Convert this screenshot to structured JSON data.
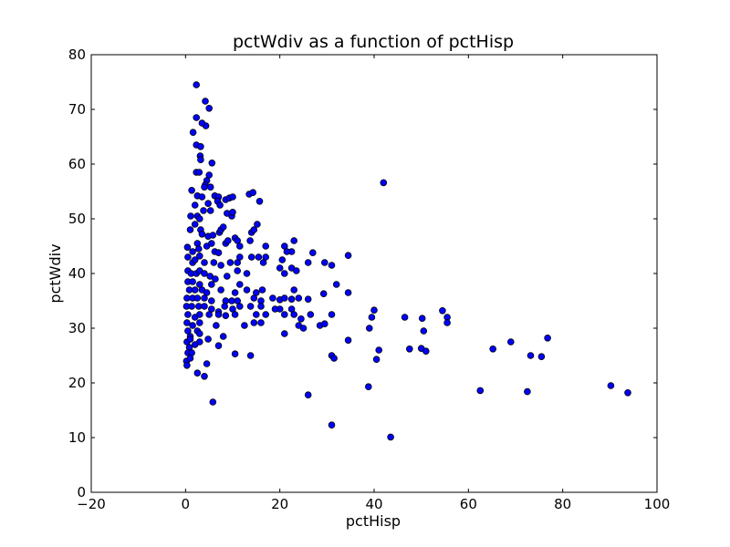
{
  "chart_data": {
    "type": "scatter",
    "title": "pctWdiv as a function of pctHisp",
    "xlabel": "pctHisp",
    "ylabel": "pctWdiv",
    "xlim": [
      -20,
      100
    ],
    "ylim": [
      0,
      80
    ],
    "xticks": [
      -20,
      0,
      20,
      40,
      60,
      80,
      100
    ],
    "yticks": [
      0,
      10,
      20,
      30,
      40,
      50,
      60,
      70,
      80
    ],
    "xtick_labels": [
      "−20",
      "0",
      "20",
      "40",
      "60",
      "80",
      "100"
    ],
    "ytick_labels": [
      "0",
      "10",
      "20",
      "30",
      "40",
      "50",
      "60",
      "70",
      "80"
    ],
    "grid": false,
    "marker_color": "#0000ff",
    "marker_edge_color": "#000000",
    "points": [
      [
        2.3,
        74.5
      ],
      [
        4.2,
        71.5
      ],
      [
        5.0,
        70.2
      ],
      [
        2.3,
        68.5
      ],
      [
        4.3,
        67.0
      ],
      [
        3.5,
        67.5
      ],
      [
        1.6,
        65.8
      ],
      [
        2.3,
        63.5
      ],
      [
        3.2,
        63.2
      ],
      [
        3.1,
        61.5
      ],
      [
        3.2,
        60.8
      ],
      [
        5.6,
        60.2
      ],
      [
        2.3,
        58.5
      ],
      [
        2.9,
        58.5
      ],
      [
        5.0,
        58.0
      ],
      [
        4.5,
        57.0
      ],
      [
        4.2,
        56.2
      ],
      [
        42.0,
        56.6
      ],
      [
        4.0,
        55.8
      ],
      [
        5.3,
        55.8
      ],
      [
        1.3,
        55.2
      ],
      [
        2.5,
        54.2
      ],
      [
        3.5,
        54.0
      ],
      [
        6.2,
        54.2
      ],
      [
        7.0,
        54.0
      ],
      [
        8.5,
        53.5
      ],
      [
        9.3,
        53.8
      ],
      [
        10.0,
        54.0
      ],
      [
        13.5,
        54.5
      ],
      [
        14.3,
        54.8
      ],
      [
        15.7,
        53.2
      ],
      [
        6.8,
        53.2
      ],
      [
        7.3,
        52.5
      ],
      [
        4.8,
        52.8
      ],
      [
        2.0,
        52.5
      ],
      [
        1.1,
        50.5
      ],
      [
        2.5,
        50.5
      ],
      [
        3.0,
        50.0
      ],
      [
        3.8,
        51.5
      ],
      [
        5.3,
        51.5
      ],
      [
        8.8,
        51.0
      ],
      [
        9.8,
        50.5
      ],
      [
        10.0,
        51.2
      ],
      [
        2.0,
        49.0
      ],
      [
        1.0,
        48.0
      ],
      [
        3.2,
        48.0
      ],
      [
        3.5,
        47.2
      ],
      [
        4.8,
        46.8
      ],
      [
        5.8,
        47.0
      ],
      [
        7.2,
        47.5
      ],
      [
        7.5,
        48.0
      ],
      [
        8.0,
        48.5
      ],
      [
        10.5,
        46.5
      ],
      [
        11.0,
        46.0
      ],
      [
        14.0,
        47.5
      ],
      [
        14.5,
        48.0
      ],
      [
        15.2,
        49.0
      ],
      [
        13.7,
        46.0
      ],
      [
        2.5,
        45.5
      ],
      [
        0.4,
        44.8
      ],
      [
        1.5,
        44.0
      ],
      [
        2.8,
        44.5
      ],
      [
        3.0,
        43.2
      ],
      [
        4.5,
        45.0
      ],
      [
        5.5,
        45.5
      ],
      [
        6.2,
        44.0
      ],
      [
        7.0,
        43.8
      ],
      [
        8.5,
        45.5
      ],
      [
        9.0,
        46.0
      ],
      [
        11.5,
        45.0
      ],
      [
        17.0,
        45.0
      ],
      [
        21.0,
        45.0
      ],
      [
        22.5,
        44.0
      ],
      [
        23.0,
        46.0
      ],
      [
        21.5,
        44.0
      ],
      [
        27.0,
        43.8
      ],
      [
        34.5,
        43.3
      ],
      [
        0.5,
        43.0
      ],
      [
        1.5,
        42.0
      ],
      [
        2.0,
        42.5
      ],
      [
        4.0,
        42.0
      ],
      [
        6.0,
        42.0
      ],
      [
        7.5,
        41.5
      ],
      [
        9.5,
        42.0
      ],
      [
        11.0,
        42.0
      ],
      [
        11.5,
        43.0
      ],
      [
        14.0,
        43.0
      ],
      [
        15.5,
        43.0
      ],
      [
        17.0,
        43.0
      ],
      [
        20.5,
        42.5
      ],
      [
        26.0,
        42.0
      ],
      [
        29.5,
        42.0
      ],
      [
        31.0,
        41.5
      ],
      [
        0.5,
        40.5
      ],
      [
        1.2,
        40.0
      ],
      [
        2.3,
        40.0
      ],
      [
        3.0,
        40.5
      ],
      [
        4.0,
        40.0
      ],
      [
        5.2,
        39.5
      ],
      [
        8.8,
        39.5
      ],
      [
        11.0,
        40.5
      ],
      [
        13.0,
        40.0
      ],
      [
        16.5,
        42.0
      ],
      [
        20.0,
        41.0
      ],
      [
        21.0,
        40.0
      ],
      [
        22.5,
        41.0
      ],
      [
        23.5,
        40.5
      ],
      [
        0.5,
        38.5
      ],
      [
        1.5,
        38.5
      ],
      [
        3.0,
        38.0
      ],
      [
        5.5,
        38.0
      ],
      [
        6.3,
        39.0
      ],
      [
        11.5,
        38.0
      ],
      [
        32.0,
        38.0
      ],
      [
        0.8,
        37.0
      ],
      [
        2.0,
        37.0
      ],
      [
        3.5,
        37.0
      ],
      [
        4.5,
        36.5
      ],
      [
        7.5,
        37.0
      ],
      [
        10.5,
        36.5
      ],
      [
        13.0,
        37.0
      ],
      [
        15.0,
        36.5
      ],
      [
        16.3,
        37.0
      ],
      [
        23.0,
        37.0
      ],
      [
        29.3,
        36.3
      ],
      [
        34.5,
        36.5
      ],
      [
        0.3,
        35.5
      ],
      [
        1.5,
        35.5
      ],
      [
        2.5,
        35.5
      ],
      [
        4.0,
        35.5
      ],
      [
        5.5,
        35.0
      ],
      [
        8.5,
        35.0
      ],
      [
        9.8,
        35.0
      ],
      [
        11.0,
        35.0
      ],
      [
        14.5,
        35.5
      ],
      [
        16.0,
        35.0
      ],
      [
        18.5,
        35.5
      ],
      [
        20.0,
        35.2
      ],
      [
        21.0,
        35.5
      ],
      [
        22.5,
        35.3
      ],
      [
        24.0,
        35.5
      ],
      [
        26.0,
        35.3
      ],
      [
        0.2,
        34.0
      ],
      [
        1.3,
        34.0
      ],
      [
        2.8,
        34.0
      ],
      [
        4.0,
        34.0
      ],
      [
        5.5,
        33.5
      ],
      [
        7.0,
        33.0
      ],
      [
        8.3,
        34.0
      ],
      [
        10.0,
        33.5
      ],
      [
        11.5,
        34.0
      ],
      [
        13.8,
        34.0
      ],
      [
        16.0,
        34.0
      ],
      [
        20.0,
        33.5
      ],
      [
        22.5,
        33.5
      ],
      [
        40.0,
        33.3
      ],
      [
        54.5,
        33.2
      ],
      [
        0.5,
        32.5
      ],
      [
        2.0,
        32.0
      ],
      [
        3.0,
        32.5
      ],
      [
        5.0,
        32.5
      ],
      [
        7.0,
        32.5
      ],
      [
        8.5,
        32.3
      ],
      [
        10.5,
        32.5
      ],
      [
        15.0,
        32.5
      ],
      [
        17.0,
        32.5
      ],
      [
        19.0,
        33.5
      ],
      [
        21.0,
        32.5
      ],
      [
        23.0,
        32.5
      ],
      [
        24.5,
        31.7
      ],
      [
        26.5,
        32.5
      ],
      [
        31.0,
        32.5
      ],
      [
        39.5,
        32.0
      ],
      [
        46.5,
        32.0
      ],
      [
        50.2,
        31.8
      ],
      [
        55.5,
        32.0
      ],
      [
        0.3,
        31.0
      ],
      [
        1.5,
        30.5
      ],
      [
        3.0,
        31.0
      ],
      [
        6.5,
        30.5
      ],
      [
        12.5,
        30.5
      ],
      [
        14.5,
        31.0
      ],
      [
        16.0,
        31.0
      ],
      [
        24.0,
        30.5
      ],
      [
        25.0,
        30.0
      ],
      [
        28.5,
        30.5
      ],
      [
        29.5,
        30.8
      ],
      [
        39.0,
        30.0
      ],
      [
        50.5,
        29.5
      ],
      [
        55.5,
        31.0
      ],
      [
        0.5,
        29.5
      ],
      [
        1.0,
        28.5
      ],
      [
        2.5,
        29.5
      ],
      [
        3.0,
        29.0
      ],
      [
        21.0,
        29.0
      ],
      [
        0.3,
        27.5
      ],
      [
        1.0,
        28.0
      ],
      [
        3.0,
        27.5
      ],
      [
        4.8,
        28.0
      ],
      [
        8.0,
        28.5
      ],
      [
        34.5,
        27.8
      ],
      [
        69.0,
        27.5
      ],
      [
        76.8,
        28.2
      ],
      [
        0.8,
        26.5
      ],
      [
        2.0,
        27.0
      ],
      [
        7.0,
        26.8
      ],
      [
        41.0,
        26.0
      ],
      [
        47.5,
        26.2
      ],
      [
        50.0,
        26.3
      ],
      [
        51.0,
        25.8
      ],
      [
        65.2,
        26.2
      ],
      [
        0.5,
        25.5
      ],
      [
        1.3,
        25.5
      ],
      [
        10.5,
        25.3
      ],
      [
        13.8,
        25.0
      ],
      [
        31.0,
        25.0
      ],
      [
        31.5,
        24.5
      ],
      [
        73.2,
        25.0
      ],
      [
        75.5,
        24.8
      ],
      [
        0.2,
        24.0
      ],
      [
        1.0,
        24.5
      ],
      [
        40.5,
        24.3
      ],
      [
        0.3,
        23.2
      ],
      [
        4.5,
        23.5
      ],
      [
        2.5,
        21.8
      ],
      [
        4.0,
        21.2
      ],
      [
        38.8,
        19.3
      ],
      [
        90.2,
        19.5
      ],
      [
        62.5,
        18.6
      ],
      [
        72.5,
        18.4
      ],
      [
        93.8,
        18.2
      ],
      [
        26.0,
        17.8
      ],
      [
        5.8,
        16.5
      ],
      [
        31.0,
        12.3
      ],
      [
        43.5,
        10.1
      ]
    ]
  }
}
